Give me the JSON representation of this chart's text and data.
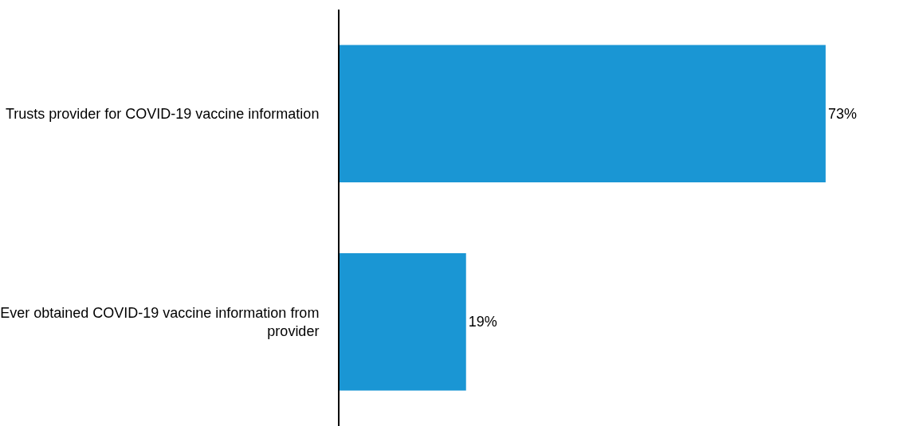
{
  "chart_data": {
    "type": "bar",
    "orientation": "horizontal",
    "categories": [
      "Trusts provider for COVID-19 vaccine information",
      "Ever obtained COVID-19 vaccine information from provider"
    ],
    "values": [
      73,
      19
    ],
    "value_labels": [
      "73%",
      "19%"
    ],
    "color": "#1a96d4"
  }
}
